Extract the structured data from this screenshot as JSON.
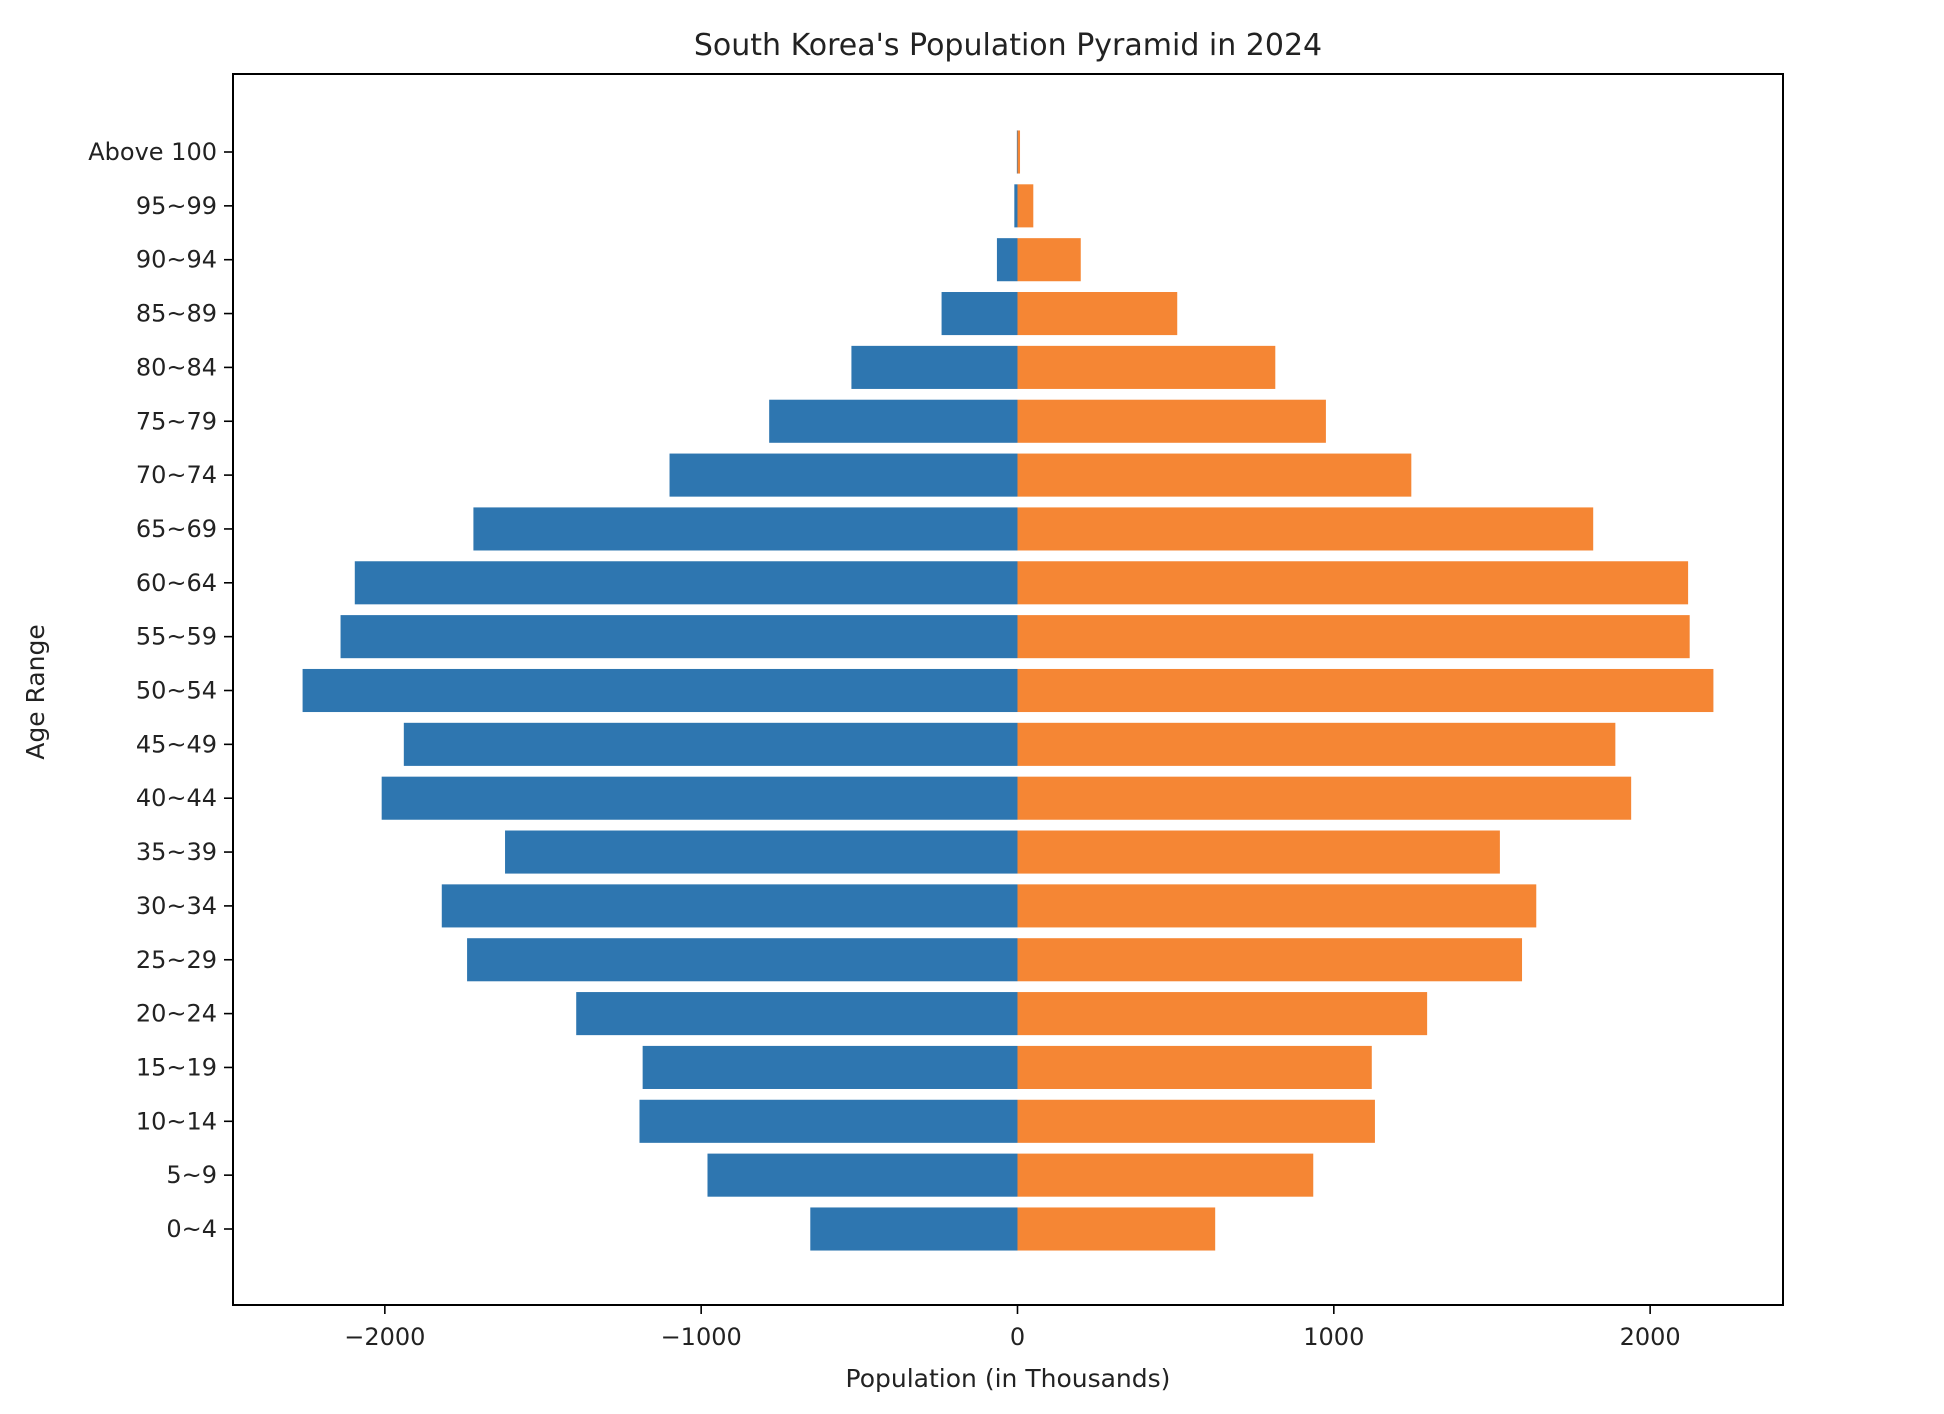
{
  "chart_data": {
    "type": "bar",
    "orientation": "horizontal",
    "title": "South Korea's Population Pyramid in 2024",
    "xlabel": "Population (in Thousands)",
    "ylabel": "Age Range",
    "xlim": [
      -2480,
      2420
    ],
    "xticks": [
      -2000,
      -1000,
      0,
      1000,
      2000
    ],
    "xtick_labels": [
      "−2000",
      "−1000",
      "0",
      "1000",
      "2000"
    ],
    "grid": false,
    "categories": [
      "0~4",
      "5~9",
      "10~14",
      "15~19",
      "20~24",
      "25~29",
      "30~34",
      "35~39",
      "40~44",
      "45~49",
      "50~54",
      "55~59",
      "60~64",
      "65~69",
      "70~74",
      "75~79",
      "80~84",
      "85~89",
      "90~94",
      "95~99",
      "Above 100"
    ],
    "series": [
      {
        "color": "#2e76b0",
        "values": [
          -655,
          -980,
          -1195,
          -1185,
          -1395,
          -1740,
          -1820,
          -1620,
          -2010,
          -1940,
          -2260,
          -2140,
          -2095,
          -1720,
          -1100,
          -785,
          -525,
          -240,
          -65,
          -10,
          -2
        ]
      },
      {
        "color": "#f58634",
        "values": [
          625,
          935,
          1130,
          1120,
          1295,
          1595,
          1640,
          1525,
          1940,
          1890,
          2200,
          2125,
          2120,
          1820,
          1245,
          975,
          815,
          505,
          200,
          50,
          8
        ]
      }
    ]
  }
}
